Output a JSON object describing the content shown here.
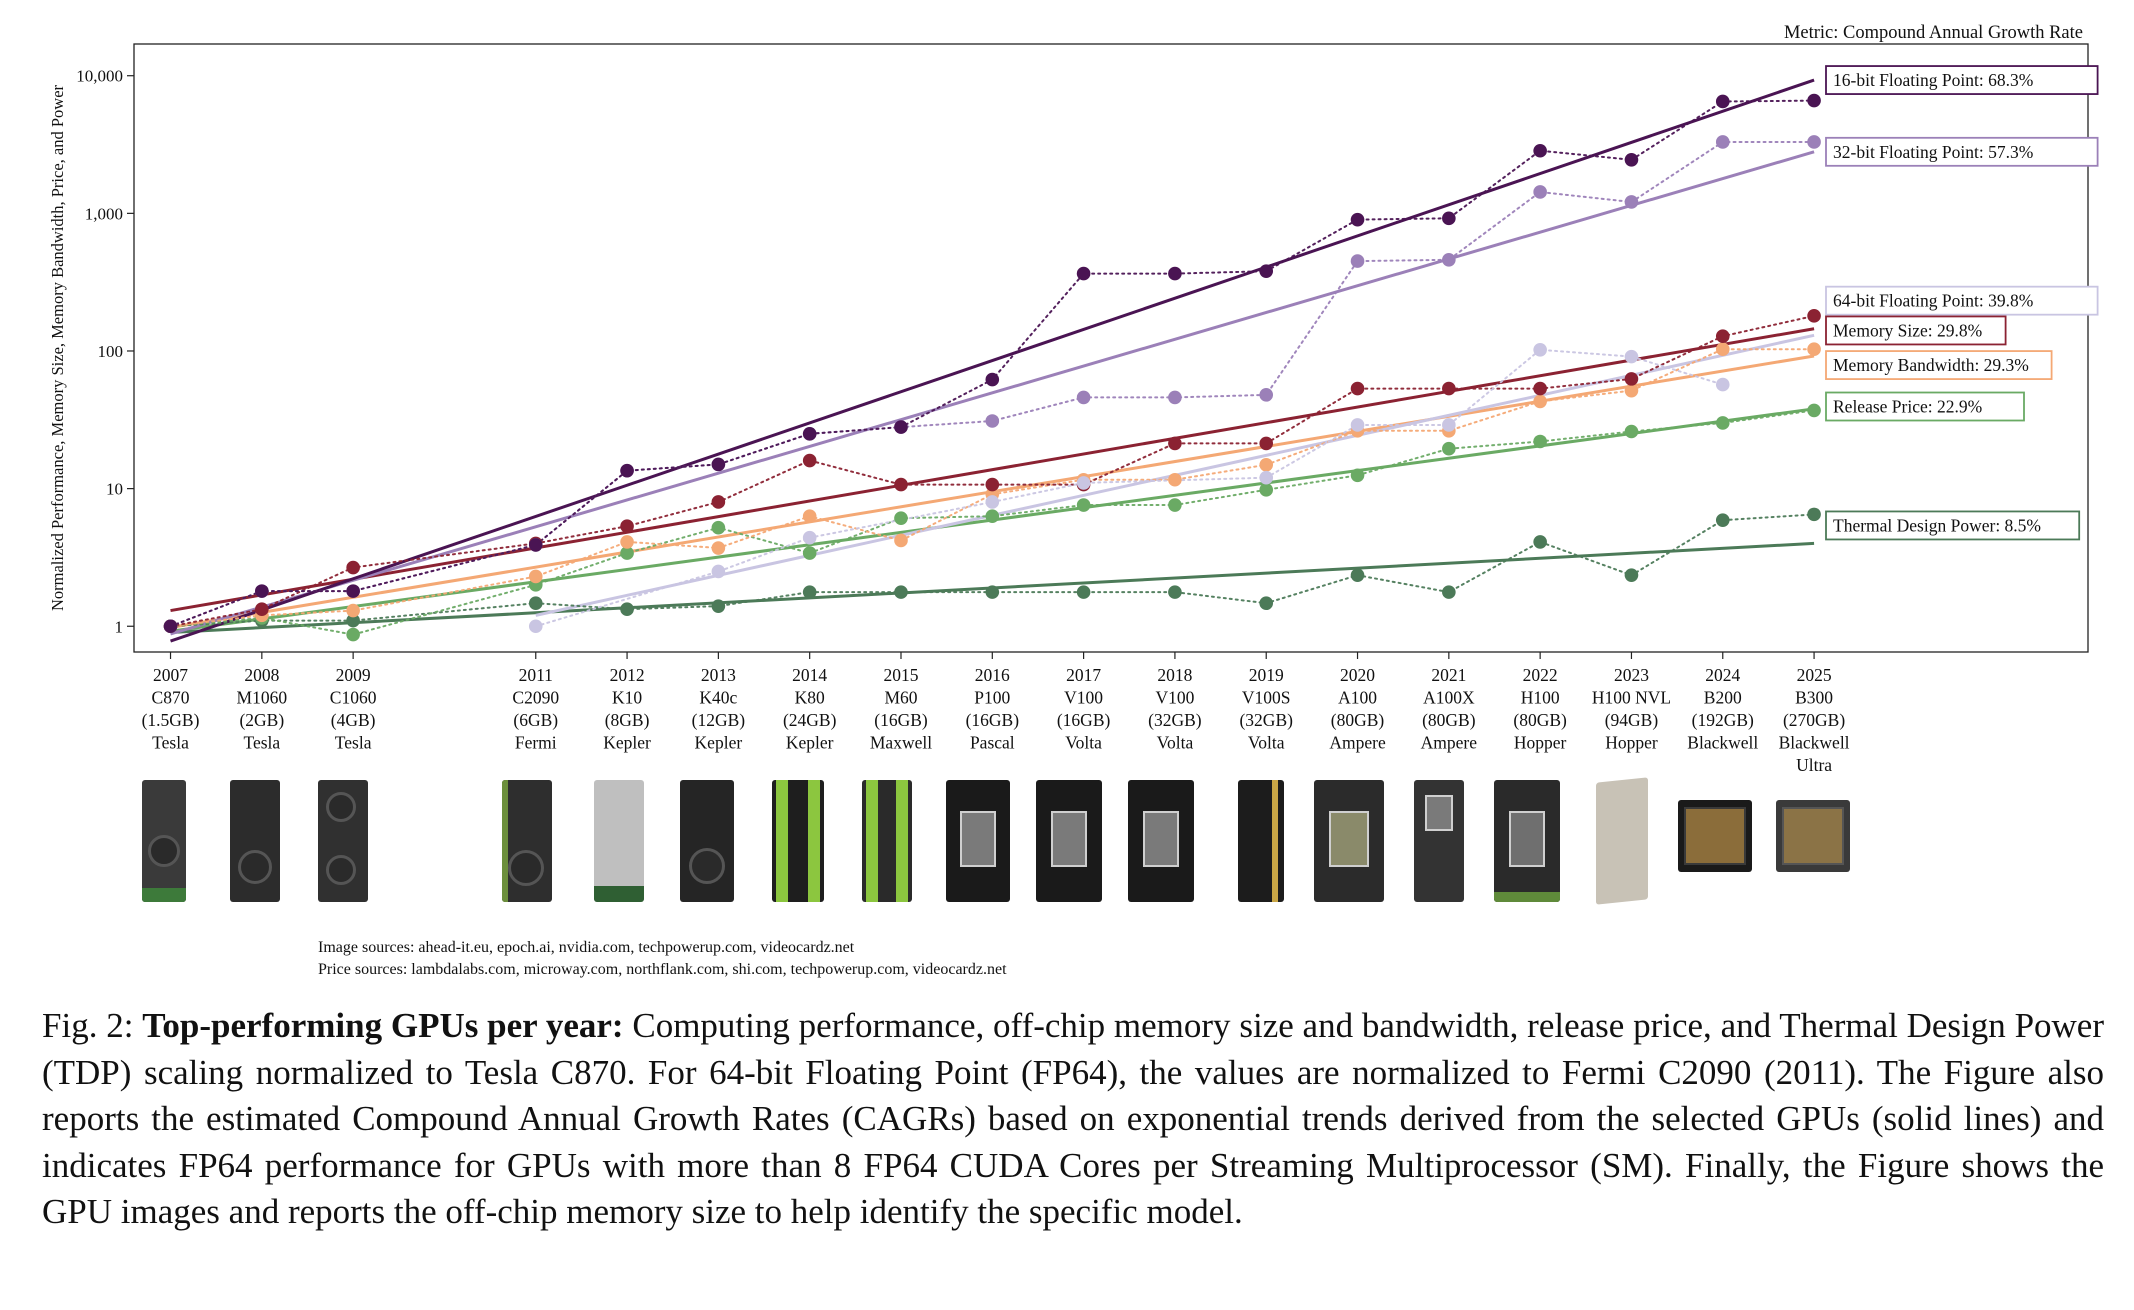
{
  "figure": {
    "metric_note": "Metric: Compound Annual Growth Rate",
    "image_sources": "Image sources: ahead-it.eu, epoch.ai, nvidia.com, techpowerup.com, videocardz.net",
    "price_sources": "Price sources: lambdalabs.com, microway.com, northflank.com, shi.com, techpowerup.com, videocardz.net",
    "caption_prefix": "Fig. 2: ",
    "caption_bold": "Top-performing GPUs per year:",
    "caption_body": " Computing performance, off-chip memory size and bandwidth, release price, and Thermal Design Power (TDP) scaling normalized to Tesla C870. For 64-bit Floating Point (FP64), the values are normalized to Fermi C2090 (2011). The Figure also reports the estimated Compound Annual Growth Rates (CAGRs) based on exponential trends derived from the selected GPUs (solid lines) and indicates FP64 performance for GPUs with more than 8 FP64 CUDA Cores per Streaming Multiprocessor (SM). Finally, the Figure shows the GPU images and reports the off-chip memory size to help identify the specific model."
  },
  "chart_data": {
    "type": "line",
    "y_scale": "log",
    "ylim": [
      0.65,
      17000
    ],
    "xlim": [
      2006.6,
      2028.0
    ],
    "ylabel": "Normalized Performance, Memory Size, Memory Bandwidth, Price, and Power",
    "yticks": [
      1,
      10,
      100,
      1000,
      10000
    ],
    "ytick_labels": [
      "1",
      "10",
      "100",
      "1,000",
      "10,000"
    ],
    "categories": [
      {
        "year": 2007,
        "lines": [
          "2007",
          "C870",
          "(1.5GB)",
          "Tesla"
        ]
      },
      {
        "year": 2008,
        "lines": [
          "2008",
          "M1060",
          "(2GB)",
          "Tesla"
        ]
      },
      {
        "year": 2009,
        "lines": [
          "2009",
          "C1060",
          "(4GB)",
          "Tesla"
        ]
      },
      {
        "year": 2011,
        "lines": [
          "2011",
          "C2090",
          "(6GB)",
          "Fermi"
        ]
      },
      {
        "year": 2012,
        "lines": [
          "2012",
          "K10",
          "(8GB)",
          "Kepler"
        ]
      },
      {
        "year": 2013,
        "lines": [
          "2013",
          "K40c",
          "(12GB)",
          "Kepler"
        ]
      },
      {
        "year": 2014,
        "lines": [
          "2014",
          "K80",
          "(24GB)",
          "Kepler"
        ]
      },
      {
        "year": 2015,
        "lines": [
          "2015",
          "M60",
          "(16GB)",
          "Maxwell"
        ]
      },
      {
        "year": 2016,
        "lines": [
          "2016",
          "P100",
          "(16GB)",
          "Pascal"
        ]
      },
      {
        "year": 2017,
        "lines": [
          "2017",
          "V100",
          "(16GB)",
          "Volta"
        ]
      },
      {
        "year": 2018,
        "lines": [
          "2018",
          "V100",
          "(32GB)",
          "Volta"
        ]
      },
      {
        "year": 2019,
        "lines": [
          "2019",
          "V100S",
          "(32GB)",
          "Volta"
        ]
      },
      {
        "year": 2020,
        "lines": [
          "2020",
          "A100",
          "(80GB)",
          "Ampere"
        ]
      },
      {
        "year": 2021,
        "lines": [
          "2021",
          "A100X",
          "(80GB)",
          "Ampere"
        ]
      },
      {
        "year": 2022,
        "lines": [
          "2022",
          "H100",
          "(80GB)",
          "Hopper"
        ]
      },
      {
        "year": 2023,
        "lines": [
          "2023",
          "H100 NVL",
          "(94GB)",
          "Hopper"
        ]
      },
      {
        "year": 2024,
        "lines": [
          "2024",
          "B200",
          "(192GB)",
          "Blackwell"
        ]
      },
      {
        "year": 2025,
        "lines": [
          "2025",
          "B300",
          "(270GB)",
          "Blackwell",
          "Ultra"
        ]
      }
    ],
    "series": [
      {
        "name": "16-bit Floating Point",
        "label": "16-bit Floating Point: 68.3%",
        "color": "#4a1453",
        "trend": [
          [
            2007,
            0.78
          ],
          [
            2025,
            9300
          ]
        ],
        "points": [
          [
            2007,
            1.0
          ],
          [
            2008,
            1.8
          ],
          [
            2009,
            1.8
          ],
          [
            2011,
            3.9
          ],
          [
            2012,
            13.5
          ],
          [
            2013,
            15
          ],
          [
            2014,
            25
          ],
          [
            2015,
            28
          ],
          [
            2016,
            62
          ],
          [
            2017,
            365
          ],
          [
            2018,
            365
          ],
          [
            2019,
            380
          ],
          [
            2020,
            900
          ],
          [
            2021,
            920
          ],
          [
            2022,
            2850
          ],
          [
            2023,
            2450
          ],
          [
            2024,
            6500
          ],
          [
            2025,
            6600
          ]
        ]
      },
      {
        "name": "32-bit Floating Point",
        "label": "32-bit Floating Point: 57.3%",
        "color": "#9b80b8",
        "trend": [
          [
            2007,
            0.88
          ],
          [
            2025,
            2800
          ]
        ],
        "points": [
          [
            2007,
            1.0
          ],
          [
            2008,
            1.8
          ],
          [
            2009,
            1.8
          ],
          [
            2011,
            3.9
          ],
          [
            2012,
            13.5
          ],
          [
            2013,
            15
          ],
          [
            2014,
            25
          ],
          [
            2015,
            28
          ],
          [
            2016,
            31
          ],
          [
            2017,
            46
          ],
          [
            2018,
            46
          ],
          [
            2019,
            48
          ],
          [
            2020,
            450
          ],
          [
            2021,
            460
          ],
          [
            2022,
            1430
          ],
          [
            2023,
            1210
          ],
          [
            2024,
            3300
          ],
          [
            2025,
            3300
          ]
        ]
      },
      {
        "name": "64-bit Floating Point",
        "label": "64-bit Floating Point: 39.8%",
        "color": "#c9c5e2",
        "trend": [
          [
            2011,
            1.2
          ],
          [
            2025,
            130
          ]
        ],
        "points": [
          [
            2011,
            1.0
          ],
          [
            2013,
            2.5
          ],
          [
            2014,
            4.4
          ],
          [
            2016,
            8
          ],
          [
            2017,
            11
          ],
          [
            2019,
            12
          ],
          [
            2020,
            29
          ],
          [
            2021,
            29
          ],
          [
            2022,
            102
          ],
          [
            2023,
            91
          ],
          [
            2024,
            57
          ]
        ]
      },
      {
        "name": "Memory Size",
        "label": "Memory Size: 29.8%",
        "color": "#8b2232",
        "trend": [
          [
            2007,
            1.3
          ],
          [
            2025,
            145
          ]
        ],
        "points": [
          [
            2007,
            1.0
          ],
          [
            2008,
            1.33
          ],
          [
            2009,
            2.67
          ],
          [
            2011,
            4.0
          ],
          [
            2012,
            5.33
          ],
          [
            2013,
            8.0
          ],
          [
            2014,
            16
          ],
          [
            2015,
            10.7
          ],
          [
            2016,
            10.7
          ],
          [
            2017,
            10.7
          ],
          [
            2018,
            21.3
          ],
          [
            2019,
            21.3
          ],
          [
            2020,
            53.3
          ],
          [
            2021,
            53.3
          ],
          [
            2022,
            53.3
          ],
          [
            2023,
            62.7
          ],
          [
            2024,
            128
          ],
          [
            2025,
            180
          ]
        ]
      },
      {
        "name": "Memory Bandwidth",
        "label": "Memory Bandwidth: 29.3%",
        "color": "#f4a874",
        "trend": [
          [
            2007,
            0.98
          ],
          [
            2025,
            92
          ]
        ],
        "points": [
          [
            2007,
            1.0
          ],
          [
            2008,
            1.2
          ],
          [
            2009,
            1.3
          ],
          [
            2011,
            2.3
          ],
          [
            2012,
            4.1
          ],
          [
            2013,
            3.7
          ],
          [
            2014,
            6.3
          ],
          [
            2015,
            4.2
          ],
          [
            2016,
            9.1
          ],
          [
            2017,
            11.6
          ],
          [
            2018,
            11.6
          ],
          [
            2019,
            14.9
          ],
          [
            2020,
            26.3
          ],
          [
            2021,
            26.3
          ],
          [
            2022,
            43
          ],
          [
            2023,
            51.5
          ],
          [
            2024,
            103
          ],
          [
            2025,
            103
          ]
        ]
      },
      {
        "name": "Release Price",
        "label": "Release Price: 22.9%",
        "color": "#6aaa64",
        "trend": [
          [
            2007,
            0.92
          ],
          [
            2025,
            38
          ]
        ],
        "points": [
          [
            2007,
            1.0
          ],
          [
            2008,
            1.15
          ],
          [
            2009,
            0.87
          ],
          [
            2011,
            2.0
          ],
          [
            2012,
            3.4
          ],
          [
            2013,
            5.2
          ],
          [
            2014,
            3.4
          ],
          [
            2015,
            6.1
          ],
          [
            2016,
            6.3
          ],
          [
            2017,
            7.6
          ],
          [
            2018,
            7.6
          ],
          [
            2019,
            9.8
          ],
          [
            2020,
            12.5
          ],
          [
            2021,
            19.5
          ],
          [
            2022,
            22
          ],
          [
            2023,
            26
          ],
          [
            2024,
            30
          ],
          [
            2025,
            37
          ]
        ]
      },
      {
        "name": "Thermal Design Power",
        "label": "Thermal Design Power: 8.5%",
        "color": "#4c7a58",
        "trend": [
          [
            2007,
            0.9
          ],
          [
            2025,
            4.0
          ]
        ],
        "points": [
          [
            2007,
            1.0
          ],
          [
            2008,
            1.1
          ],
          [
            2009,
            1.1
          ],
          [
            2011,
            1.47
          ],
          [
            2012,
            1.33
          ],
          [
            2013,
            1.4
          ],
          [
            2014,
            1.77
          ],
          [
            2015,
            1.77
          ],
          [
            2016,
            1.77
          ],
          [
            2017,
            1.77
          ],
          [
            2018,
            1.77
          ],
          [
            2019,
            1.47
          ],
          [
            2020,
            2.35
          ],
          [
            2021,
            1.77
          ],
          [
            2022,
            4.1
          ],
          [
            2023,
            2.35
          ],
          [
            2024,
            5.9
          ],
          [
            2025,
            6.5
          ]
        ]
      }
    ]
  }
}
